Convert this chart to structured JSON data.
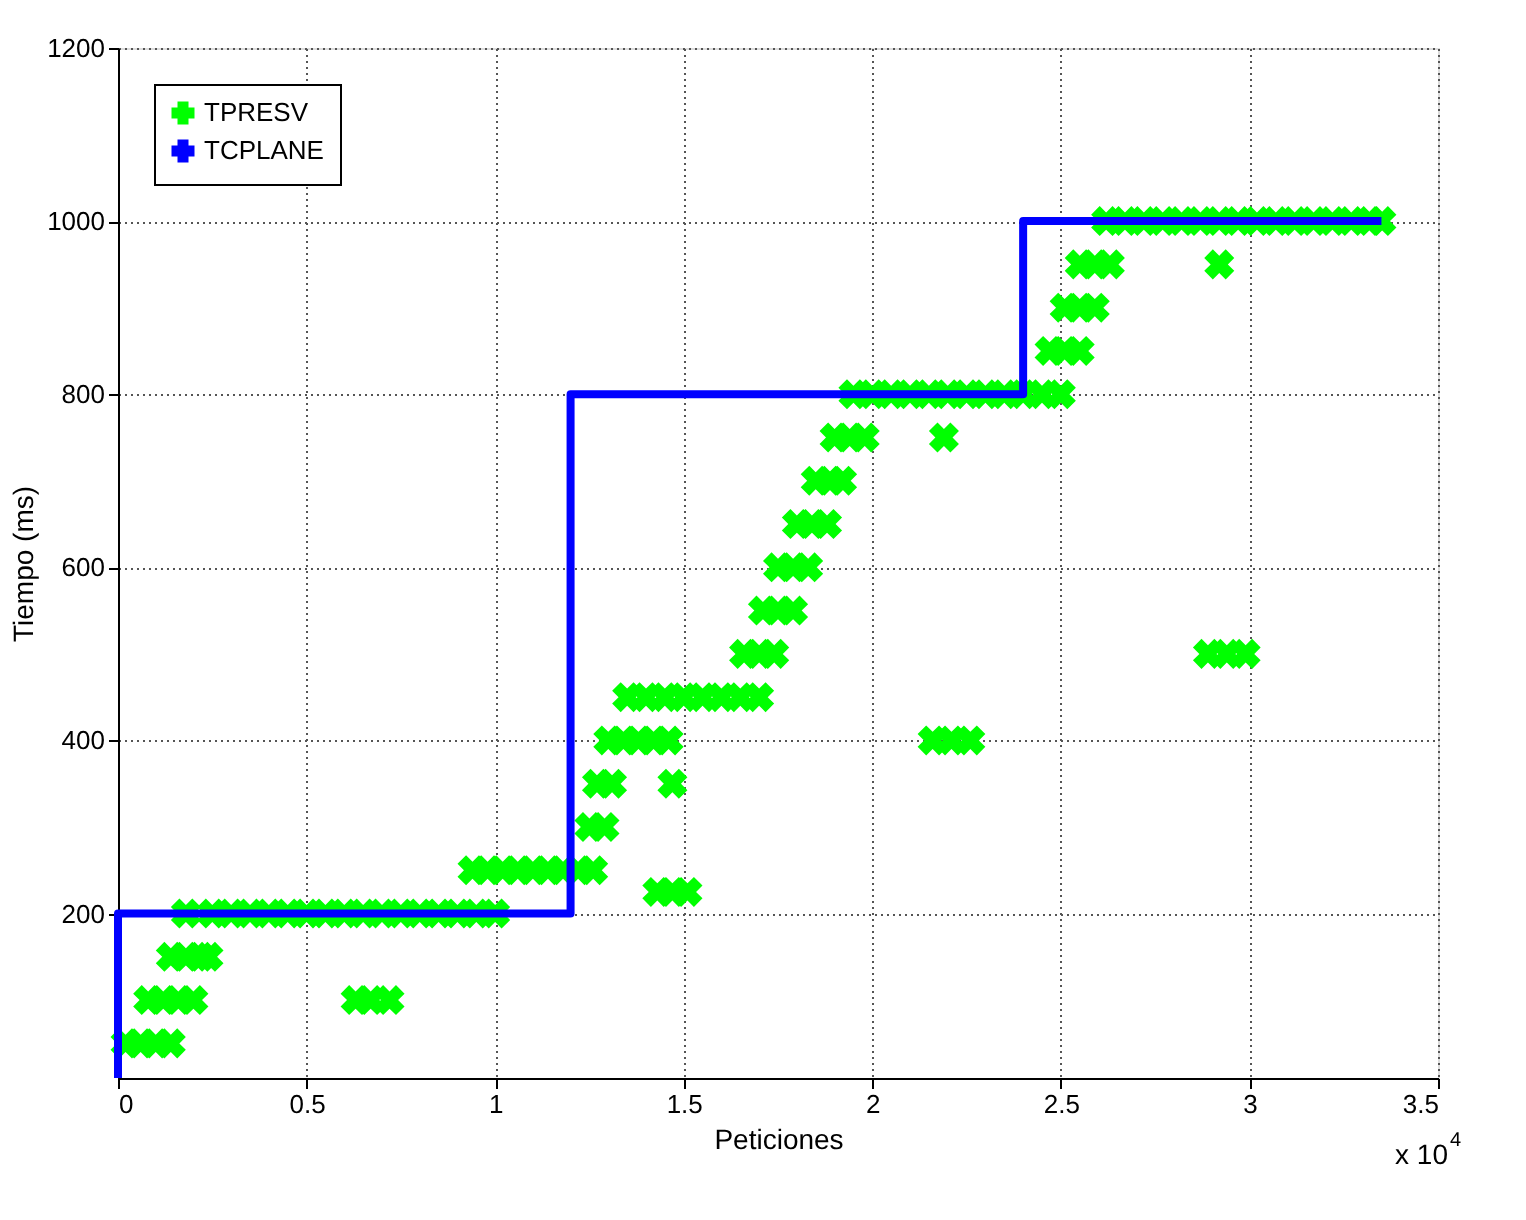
{
  "chart_data": {
    "type": "scatter",
    "xlabel": "Peticiones",
    "ylabel": "Tiempo (ms)",
    "annotations": [
      "x 10$^{4}$"
    ],
    "xlim": [
      0,
      3.5
    ],
    "xticks": [
      0,
      0.5,
      1,
      1.5,
      2,
      2.5,
      3,
      3.5
    ],
    "ylim": [
      10,
      1200
    ],
    "yticks": [
      200,
      400,
      600,
      800,
      1000,
      1200
    ],
    "grid": true,
    "legend": "top left",
    "series": [
      {
        "name": "TPRESV",
        "type": "scatter",
        "marker": "cross",
        "color": "#00ff00",
        "x": [
          0.02,
          0.06,
          0.1,
          0.14,
          0.08,
          0.12,
          0.16,
          0.2,
          0.14,
          0.18,
          0.22,
          0.24,
          0.18,
          0.25,
          0.3,
          0.35,
          0.4,
          0.45,
          0.5,
          0.55,
          0.6,
          0.65,
          0.7,
          0.75,
          0.8,
          0.85,
          0.9,
          0.95,
          1.0,
          0.63,
          0.67,
          0.72,
          0.94,
          0.98,
          1.02,
          1.06,
          1.1,
          1.14,
          1.18,
          1.22,
          1.26,
          1.25,
          1.29,
          1.27,
          1.31,
          1.47,
          1.3,
          1.34,
          1.38,
          1.42,
          1.46,
          1.35,
          1.4,
          1.45,
          1.5,
          1.55,
          1.6,
          1.65,
          1.7,
          1.43,
          1.47,
          1.51,
          1.66,
          1.7,
          1.74,
          1.71,
          1.75,
          1.79,
          1.75,
          1.79,
          1.83,
          1.8,
          1.84,
          1.88,
          1.85,
          1.89,
          1.92,
          1.9,
          1.94,
          1.98,
          2.19,
          1.95,
          2.0,
          2.05,
          2.1,
          2.15,
          2.2,
          2.25,
          2.3,
          2.35,
          2.4,
          2.45,
          2.5,
          2.16,
          2.21,
          2.26,
          2.47,
          2.51,
          2.55,
          2.51,
          2.55,
          2.59,
          2.55,
          2.59,
          2.63,
          2.92,
          2.62,
          2.67,
          2.72,
          2.77,
          2.82,
          2.87,
          2.92,
          2.97,
          3.02,
          3.07,
          3.12,
          3.17,
          3.22,
          3.27,
          3.32,
          3.35,
          2.89,
          2.94,
          2.99
        ],
        "values": [
          50,
          50,
          50,
          50,
          100,
          100,
          100,
          100,
          150,
          150,
          150,
          150,
          200,
          200,
          200,
          200,
          200,
          200,
          200,
          200,
          200,
          200,
          200,
          200,
          200,
          200,
          200,
          200,
          200,
          100,
          100,
          100,
          250,
          250,
          250,
          250,
          250,
          250,
          250,
          250,
          250,
          300,
          300,
          350,
          350,
          350,
          400,
          400,
          400,
          400,
          400,
          450,
          450,
          450,
          450,
          450,
          450,
          450,
          450,
          225,
          225,
          225,
          500,
          500,
          500,
          550,
          550,
          550,
          600,
          600,
          600,
          650,
          650,
          650,
          700,
          700,
          700,
          750,
          750,
          750,
          750,
          800,
          800,
          800,
          800,
          800,
          800,
          800,
          800,
          800,
          800,
          800,
          800,
          400,
          400,
          400,
          850,
          850,
          850,
          900,
          900,
          900,
          950,
          950,
          950,
          950,
          1000,
          1000,
          1000,
          1000,
          1000,
          1000,
          1000,
          1000,
          1000,
          1000,
          1000,
          1000,
          1000,
          1000,
          1000,
          1000,
          500,
          500,
          500
        ]
      },
      {
        "name": "TCPLANE",
        "type": "line",
        "marker": "none",
        "line_style": "solid",
        "color": "#0000ff",
        "x": [
          0,
          0,
          1.2,
          1.2,
          2.4,
          2.4,
          3.35
        ],
        "values": [
          10,
          200,
          200,
          800,
          800,
          1000,
          1000
        ]
      }
    ]
  }
}
